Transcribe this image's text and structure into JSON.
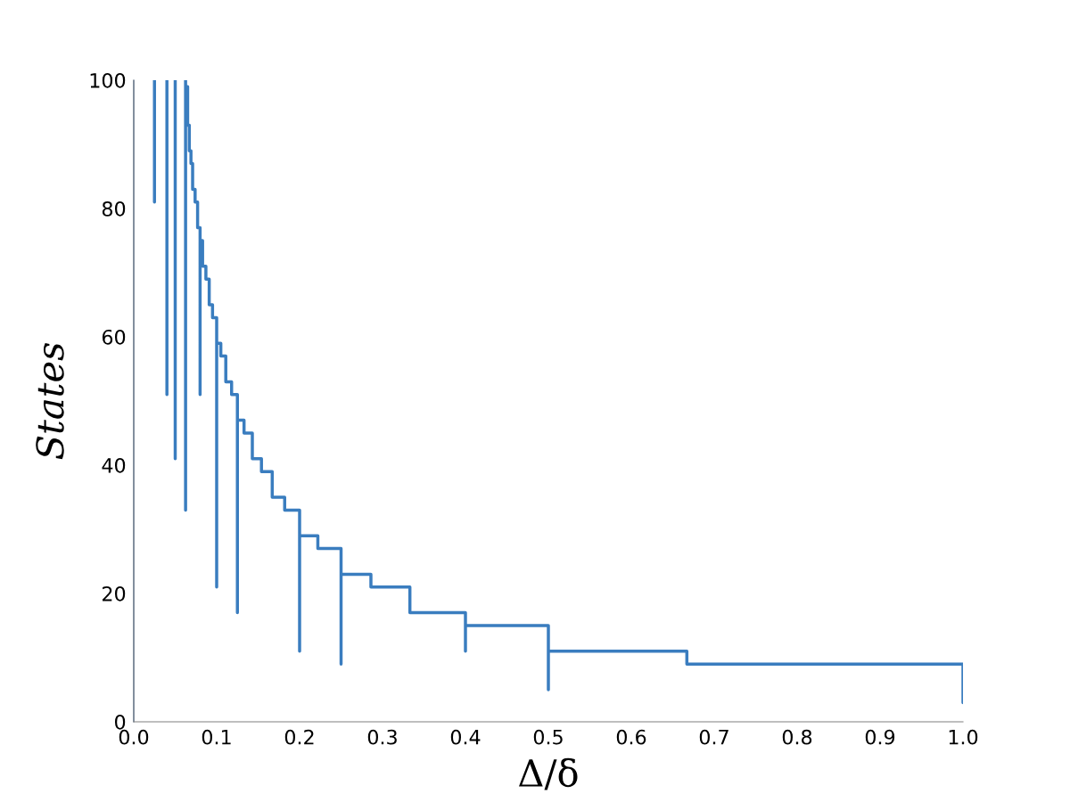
{
  "chart_data": {
    "type": "line",
    "xlabel": "Δ/δ",
    "ylabel": "States",
    "series": [
      {
        "color": "#3a7dbf",
        "x": [
          1.0,
          1.0,
          0.667,
          0.667,
          0.5,
          0.5,
          0.5,
          0.4,
          0.4,
          0.4,
          0.333,
          0.333,
          0.286,
          0.286,
          0.25,
          0.25,
          0.25,
          0.222,
          0.222,
          0.2,
          0.2,
          0.2,
          0.182,
          0.182,
          0.167,
          0.167,
          0.154,
          0.154,
          0.143,
          0.143,
          0.133,
          0.133,
          0.125,
          0.125,
          0.125,
          0.118,
          0.118,
          0.111,
          0.111,
          0.105,
          0.105,
          0.1,
          0.1,
          0.1,
          0.095,
          0.095,
          0.091,
          0.091,
          0.087,
          0.087,
          0.083,
          0.083,
          0.08,
          0.08,
          0.08,
          0.077,
          0.077,
          0.074,
          0.074,
          0.071,
          0.071,
          0.069,
          0.069,
          0.067,
          0.067,
          0.065,
          0.065,
          0.0625,
          0.0625,
          0.0625
        ],
        "values": [
          3,
          9,
          9,
          11,
          11,
          5,
          15,
          15,
          11,
          17,
          17,
          21,
          21,
          23,
          23,
          9,
          27,
          27,
          29,
          29,
          11,
          33,
          33,
          35,
          35,
          39,
          39,
          41,
          41,
          45,
          45,
          47,
          47,
          17,
          51,
          51,
          53,
          53,
          57,
          57,
          59,
          59,
          21,
          63,
          63,
          65,
          65,
          69,
          69,
          71,
          71,
          75,
          75,
          51,
          77,
          77,
          81,
          81,
          83,
          83,
          87,
          87,
          89,
          89,
          93,
          93,
          99,
          99,
          33,
          100
        ]
      },
      {
        "color": "#3a7dbf",
        "x": [
          0.05,
          0.05
        ],
        "values": [
          100,
          41
        ]
      },
      {
        "color": "#3a7dbf",
        "x": [
          0.04,
          0.04
        ],
        "values": [
          100,
          51
        ]
      },
      {
        "color": "#3a7dbf",
        "x": [
          0.025,
          0.025
        ],
        "values": [
          100,
          81
        ]
      }
    ],
    "line_style": "solid",
    "marker": "none",
    "grid": false,
    "legend": false,
    "xlim": [
      0,
      1
    ],
    "ylim": [
      0,
      100
    ],
    "xticks": [
      {
        "value": 0,
        "label": "0.0"
      },
      0.1,
      0.2,
      0.3,
      0.4,
      0.5,
      0.6,
      0.7,
      0.8,
      0.9,
      {
        "value": 1,
        "label": "1.0"
      }
    ],
    "yticks": [
      0,
      20,
      40,
      60,
      80,
      100
    ]
  }
}
